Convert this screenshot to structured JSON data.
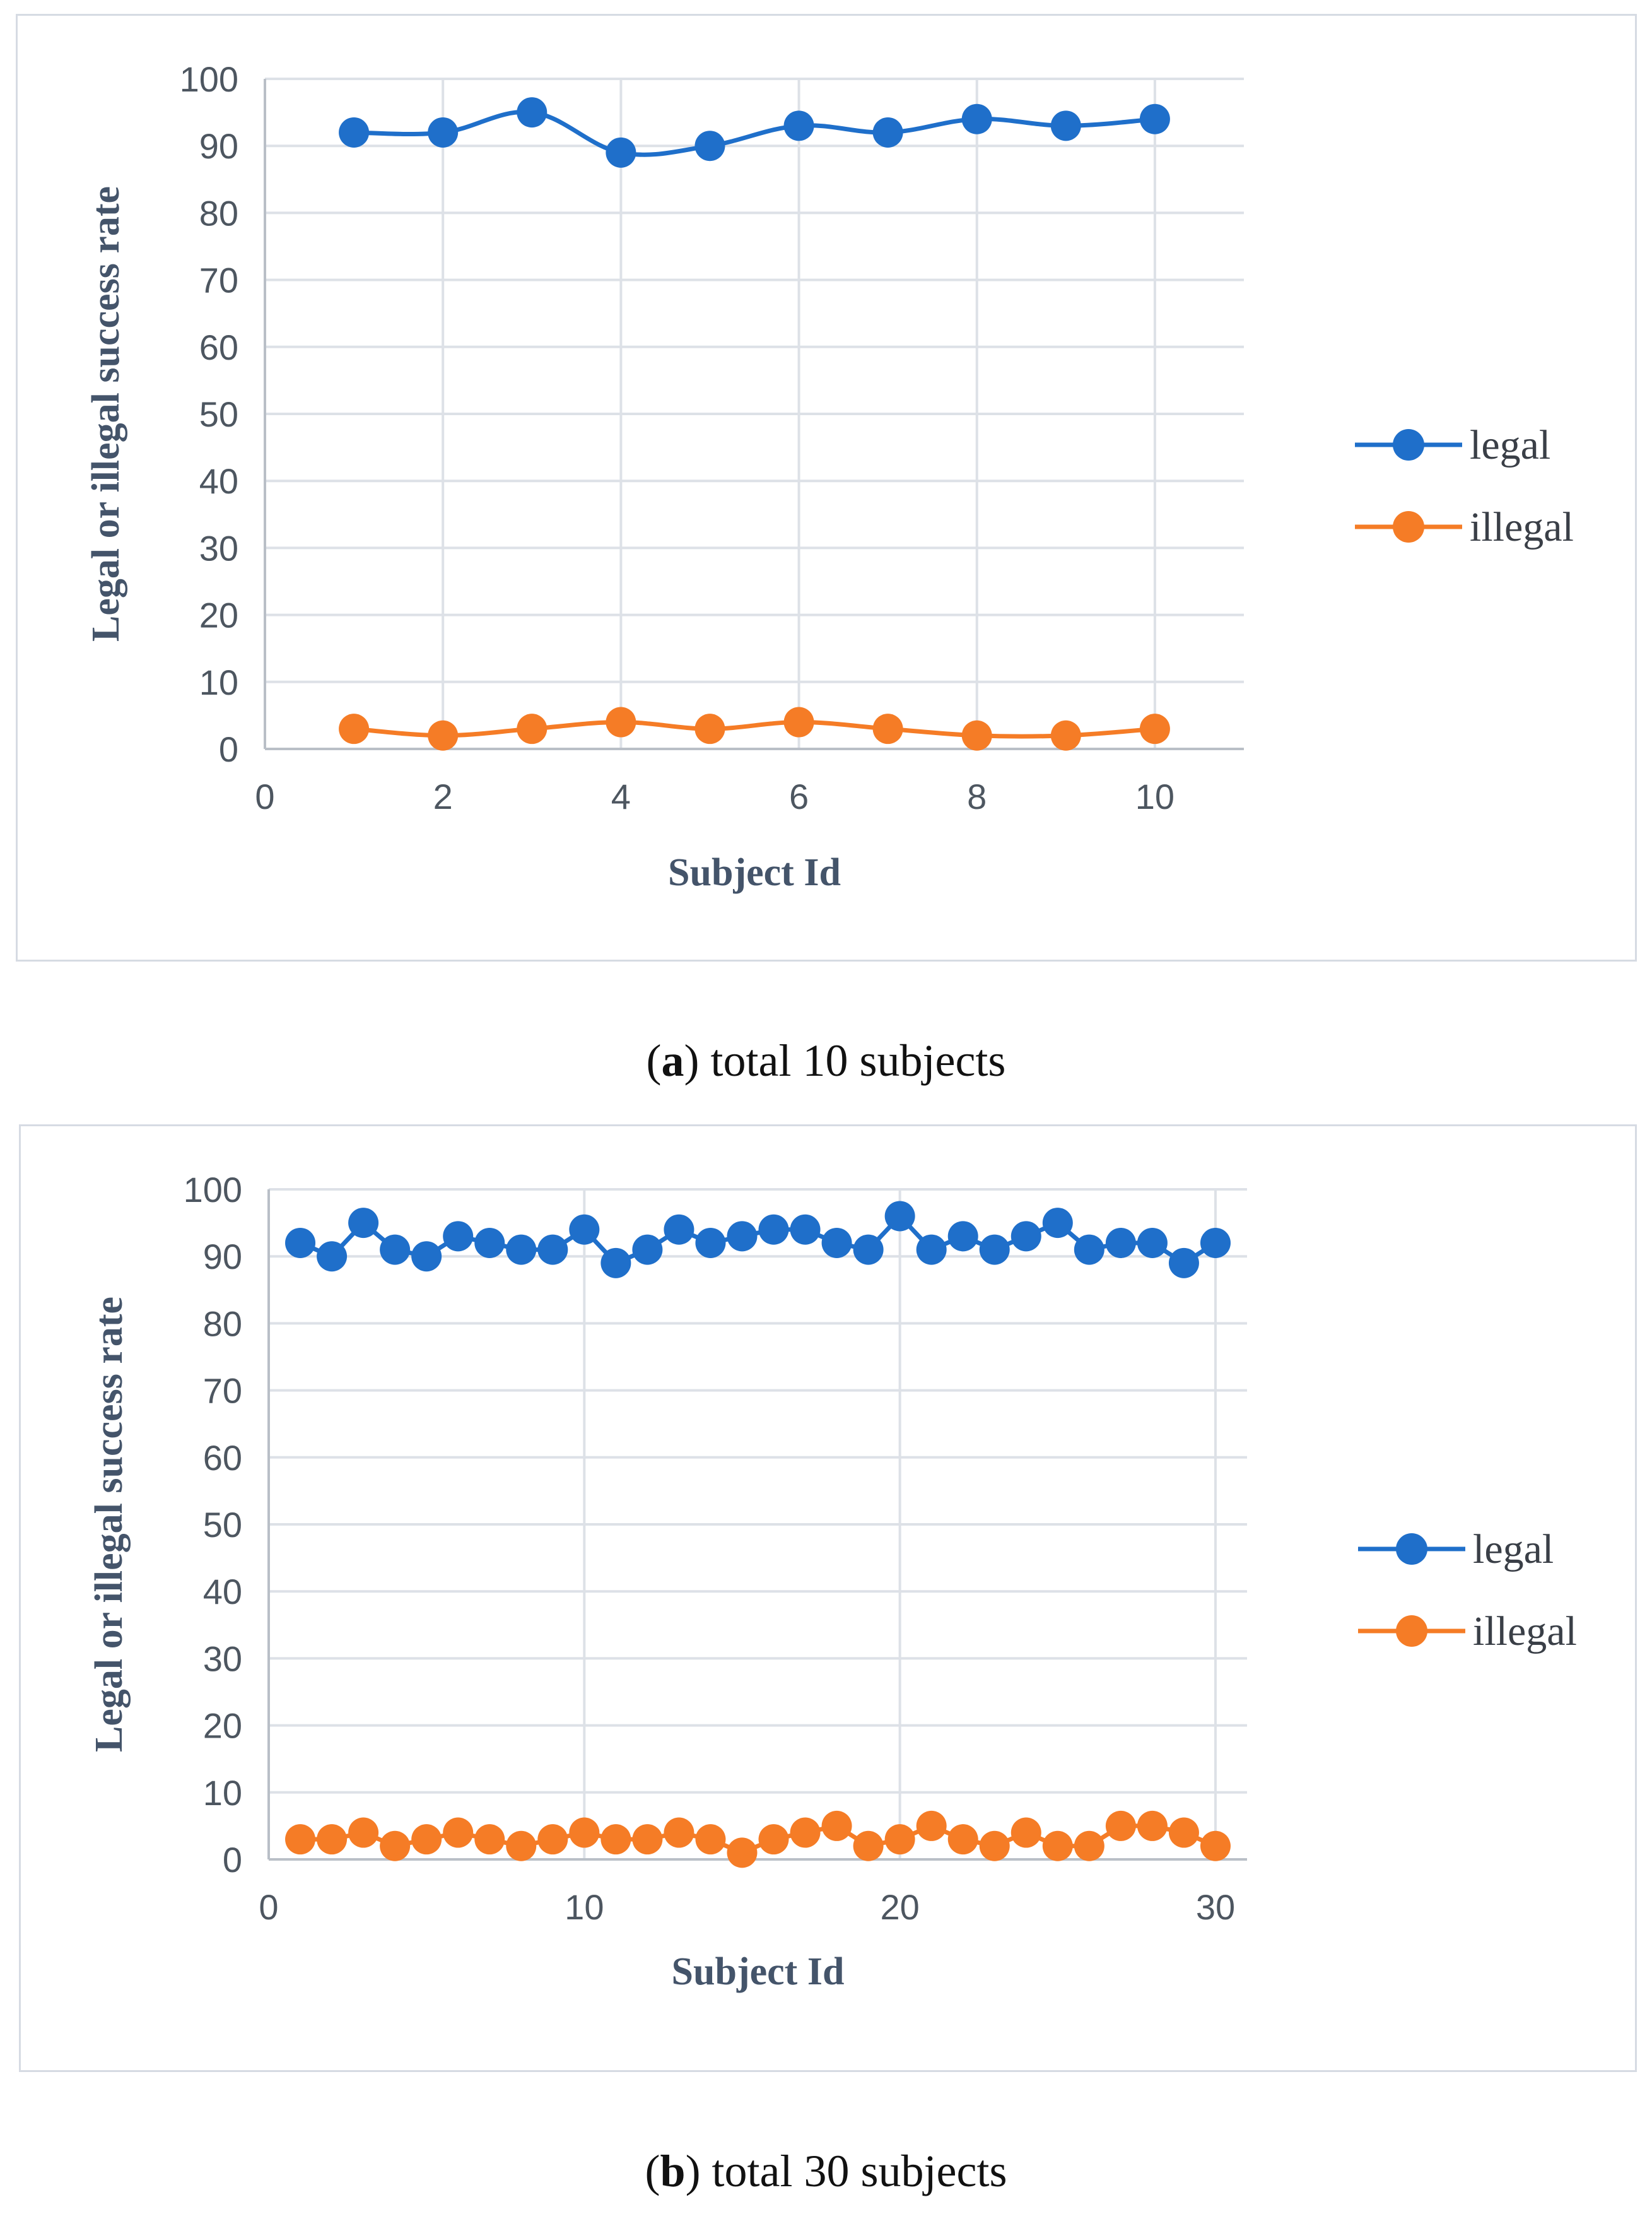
{
  "colors": {
    "legal": "#1f6fca",
    "illegal": "#f57c26",
    "grid": "#dde1e7",
    "axis": "#b9bfc7"
  },
  "chart_data": [
    {
      "type": "line",
      "caption_letter": "a",
      "caption_text": ") total 10 subjects",
      "caption_open": "(",
      "xlabel": "Subject Id",
      "ylabel": "Legal or illegal success rate",
      "xlim": [
        0,
        11
      ],
      "xticks": [
        0,
        2,
        4,
        6,
        8,
        10
      ],
      "ylim": [
        0,
        100
      ],
      "yticks": [
        0,
        10,
        20,
        30,
        40,
        50,
        60,
        70,
        80,
        90,
        100
      ],
      "smooth": true,
      "legend_position": "right",
      "x": [
        1,
        2,
        3,
        4,
        5,
        6,
        7,
        8,
        9,
        10
      ],
      "series": [
        {
          "name": "legal",
          "values": [
            92,
            92,
            95,
            89,
            90,
            93,
            92,
            94,
            93,
            94
          ]
        },
        {
          "name": "illegal",
          "values": [
            3,
            2,
            3,
            4,
            3,
            4,
            3,
            2,
            2,
            3
          ]
        }
      ]
    },
    {
      "type": "line",
      "caption_letter": "b",
      "caption_text": ") total 30 subjects",
      "caption_open": "(",
      "xlabel": "Subject Id",
      "ylabel": "Legal or illegal success rate",
      "xlim": [
        0,
        31
      ],
      "xticks": [
        0,
        10,
        20,
        30
      ],
      "ylim": [
        0,
        100
      ],
      "yticks": [
        0,
        10,
        20,
        30,
        40,
        50,
        60,
        70,
        80,
        90,
        100
      ],
      "smooth": false,
      "legend_position": "right",
      "x": [
        1,
        2,
        3,
        4,
        5,
        6,
        7,
        8,
        9,
        10,
        11,
        12,
        13,
        14,
        15,
        16,
        17,
        18,
        19,
        20,
        21,
        22,
        23,
        24,
        25,
        26,
        27,
        28,
        29,
        30
      ],
      "series": [
        {
          "name": "legal",
          "values": [
            92,
            90,
            95,
            91,
            90,
            93,
            92,
            91,
            91,
            94,
            89,
            91,
            94,
            92,
            93,
            94,
            94,
            92,
            91,
            96,
            91,
            93,
            91,
            93,
            95,
            91,
            92,
            92,
            89,
            92
          ]
        },
        {
          "name": "illegal",
          "values": [
            3,
            3,
            4,
            2,
            3,
            4,
            3,
            2,
            3,
            4,
            3,
            3,
            4,
            3,
            1,
            3,
            4,
            5,
            2,
            3,
            5,
            3,
            2,
            4,
            2,
            2,
            5,
            5,
            4,
            2
          ]
        }
      ]
    }
  ]
}
